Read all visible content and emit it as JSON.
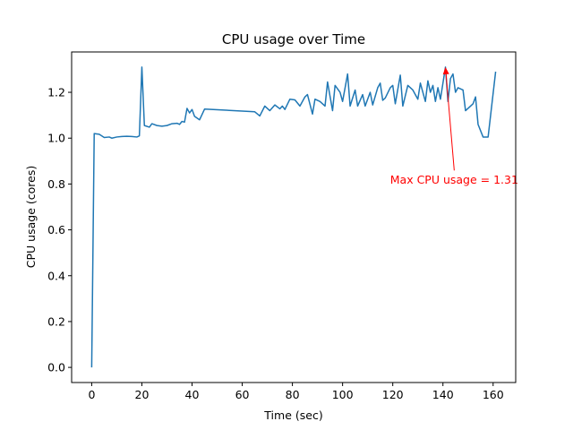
{
  "chart_data": {
    "type": "line",
    "title": "CPU usage over Time",
    "xlabel": "Time (sec)",
    "ylabel": "CPU usage (cores)",
    "xlim": [
      -8,
      169
    ],
    "ylim": [
      -0.066,
      1.376
    ],
    "xticks": [
      0,
      20,
      40,
      60,
      80,
      100,
      120,
      140,
      160
    ],
    "yticks": [
      0.0,
      0.2,
      0.4,
      0.6,
      0.8,
      1.0,
      1.2
    ],
    "xtick_labels": [
      "0",
      "20",
      "40",
      "60",
      "80",
      "100",
      "120",
      "140",
      "160"
    ],
    "ytick_labels": [
      "0.0",
      "0.2",
      "0.4",
      "0.6",
      "0.8",
      "1.0",
      "1.2"
    ],
    "grid": false,
    "series": [
      {
        "color": "#1f77b4",
        "points": [
          [
            0,
            0.0
          ],
          [
            1,
            1.02
          ],
          [
            3,
            1.017
          ],
          [
            5,
            1.003
          ],
          [
            7,
            1.005
          ],
          [
            8,
            1.0
          ],
          [
            10,
            1.005
          ],
          [
            12,
            1.007
          ],
          [
            14,
            1.008
          ],
          [
            16,
            1.007
          ],
          [
            18,
            1.005
          ],
          [
            19,
            1.01
          ],
          [
            20,
            1.31
          ],
          [
            21,
            1.055
          ],
          [
            23,
            1.048
          ],
          [
            24,
            1.063
          ],
          [
            26,
            1.055
          ],
          [
            28,
            1.052
          ],
          [
            30,
            1.055
          ],
          [
            32,
            1.063
          ],
          [
            34,
            1.065
          ],
          [
            35,
            1.06
          ],
          [
            36,
            1.073
          ],
          [
            37,
            1.07
          ],
          [
            38,
            1.13
          ],
          [
            39,
            1.11
          ],
          [
            40,
            1.125
          ],
          [
            41,
            1.095
          ],
          [
            43,
            1.08
          ],
          [
            45,
            1.127
          ],
          [
            65,
            1.115
          ],
          [
            67,
            1.097
          ],
          [
            69,
            1.14
          ],
          [
            71,
            1.12
          ],
          [
            73,
            1.145
          ],
          [
            75,
            1.128
          ],
          [
            76,
            1.14
          ],
          [
            77,
            1.125
          ],
          [
            79,
            1.17
          ],
          [
            81,
            1.167
          ],
          [
            83,
            1.14
          ],
          [
            85,
            1.18
          ],
          [
            86,
            1.19
          ],
          [
            88,
            1.105
          ],
          [
            89,
            1.17
          ],
          [
            91,
            1.16
          ],
          [
            93,
            1.14
          ],
          [
            94,
            1.245
          ],
          [
            96,
            1.12
          ],
          [
            97,
            1.23
          ],
          [
            99,
            1.2
          ],
          [
            100,
            1.16
          ],
          [
            102,
            1.28
          ],
          [
            103,
            1.14
          ],
          [
            105,
            1.21
          ],
          [
            106,
            1.14
          ],
          [
            108,
            1.19
          ],
          [
            109,
            1.14
          ],
          [
            111,
            1.2
          ],
          [
            112,
            1.145
          ],
          [
            114,
            1.22
          ],
          [
            115,
            1.24
          ],
          [
            116,
            1.165
          ],
          [
            117,
            1.175
          ],
          [
            119,
            1.22
          ],
          [
            120,
            1.23
          ],
          [
            121,
            1.15
          ],
          [
            123,
            1.275
          ],
          [
            124,
            1.14
          ],
          [
            126,
            1.23
          ],
          [
            128,
            1.21
          ],
          [
            130,
            1.17
          ],
          [
            131,
            1.24
          ],
          [
            133,
            1.16
          ],
          [
            134,
            1.25
          ],
          [
            135,
            1.2
          ],
          [
            136,
            1.23
          ],
          [
            137,
            1.16
          ],
          [
            138,
            1.22
          ],
          [
            139,
            1.17
          ],
          [
            141,
            1.31
          ],
          [
            142,
            1.16
          ],
          [
            143,
            1.26
          ],
          [
            144,
            1.28
          ],
          [
            145,
            1.2
          ],
          [
            146,
            1.22
          ],
          [
            148,
            1.21
          ],
          [
            149,
            1.12
          ],
          [
            151,
            1.14
          ],
          [
            152,
            1.15
          ],
          [
            153,
            1.18
          ],
          [
            154,
            1.06
          ],
          [
            156,
            1.005
          ],
          [
            158,
            1.005
          ],
          [
            161,
            1.29
          ]
        ]
      }
    ],
    "annotation": {
      "text": "Max CPU usage = 1.31",
      "xy": [
        141,
        1.31
      ],
      "xytext": [
        144.5,
        0.82
      ],
      "color": "#ff0000"
    }
  }
}
